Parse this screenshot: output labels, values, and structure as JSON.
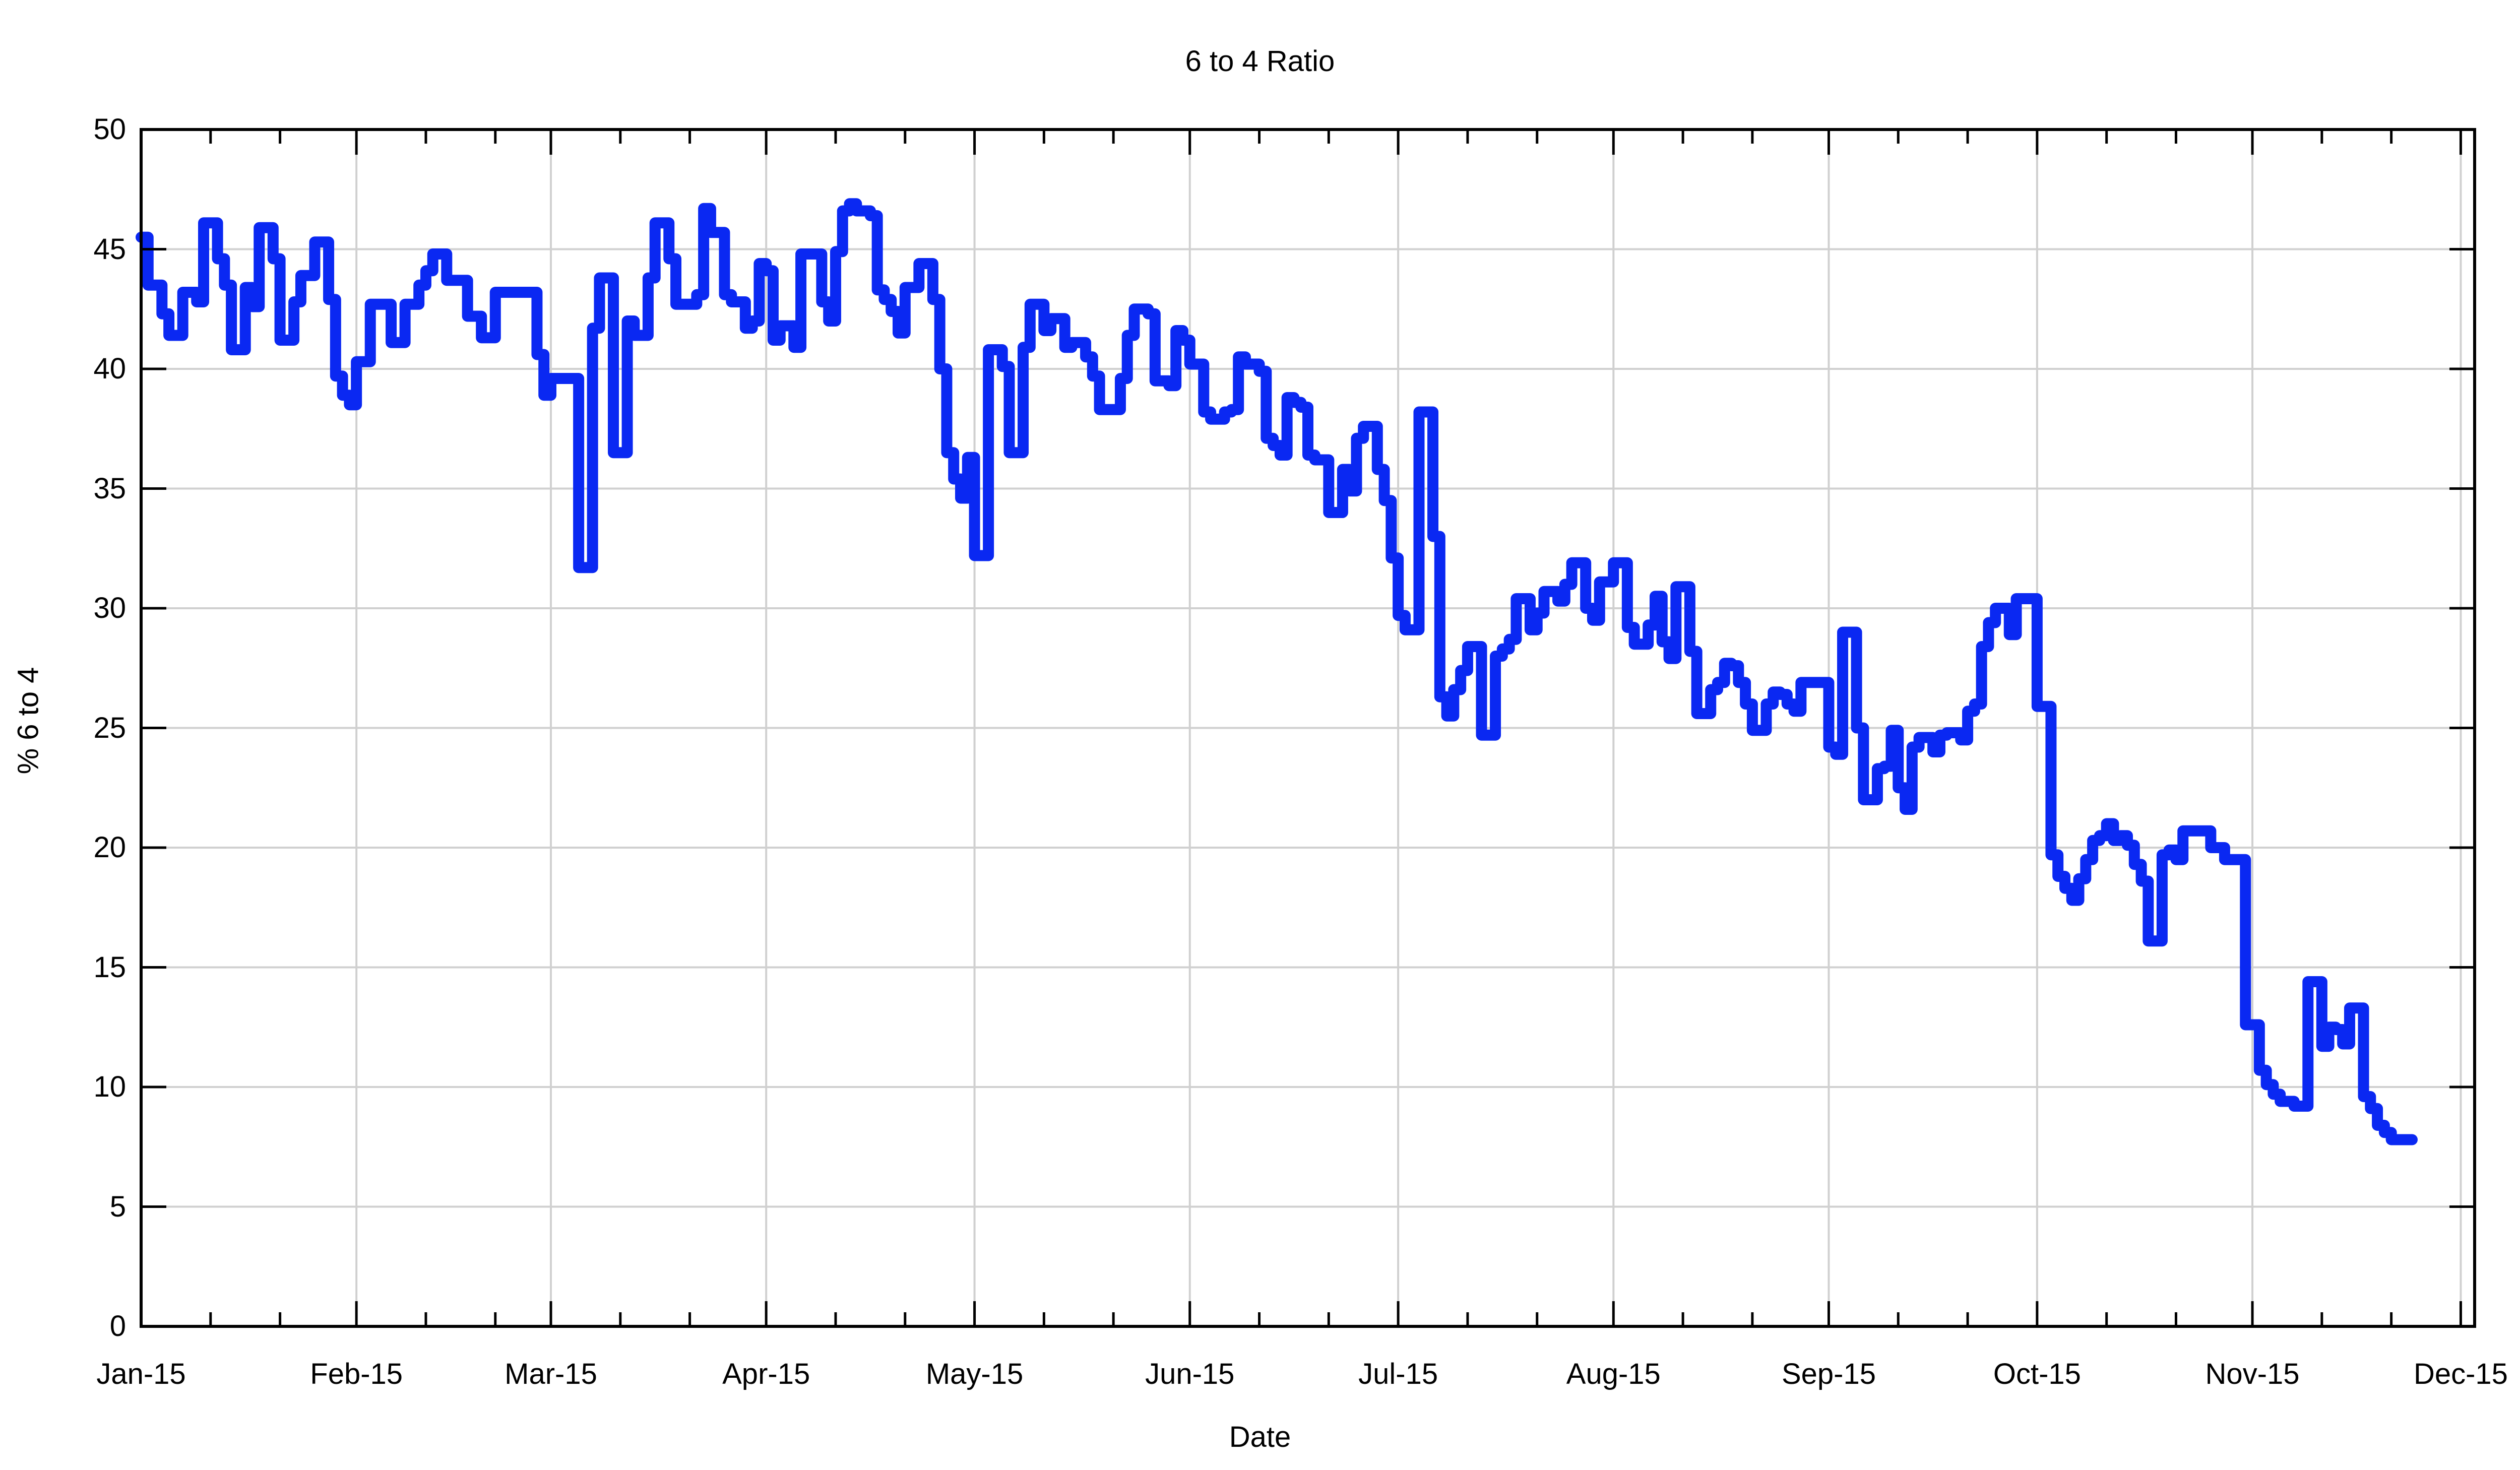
{
  "title": "6 to 4 Ratio",
  "colors": {
    "line": "#0a28f2",
    "grid": "#d0d0d0",
    "axis": "#000000",
    "background": "#ffffff"
  },
  "chart_data": {
    "type": "line",
    "step": "post",
    "title": "6 to 4 Ratio",
    "xlabel": "Date",
    "ylabel": "% 6 to 4",
    "ylim": [
      0,
      50
    ],
    "y_ticks": [
      0,
      5,
      10,
      15,
      20,
      25,
      30,
      35,
      40,
      45,
      50
    ],
    "y_tick_labels": [
      "0",
      "5",
      "10",
      "15",
      "20",
      "25",
      "30",
      "35",
      "40",
      "45",
      "50"
    ],
    "grid": true,
    "legend": "none",
    "xlim_days": [
      0,
      336
    ],
    "x_tick_days": [
      0,
      31,
      59,
      90,
      120,
      151,
      181,
      212,
      243,
      273,
      304,
      334
    ],
    "x_tick_labels": [
      "Jan-15",
      "Feb-15",
      "Mar-15",
      "Apr-15",
      "May-15",
      "Jun-15",
      "Jul-15",
      "Aug-15",
      "Sep-15",
      "Oct-15",
      "Nov-15",
      "Dec-15"
    ],
    "x_minor_offsets": [
      10,
      20
    ],
    "start_date": "2015-01-01",
    "values_daily": [
      45.5,
      43.5,
      43.5,
      42.3,
      41.4,
      41.4,
      43.2,
      43.2,
      42.8,
      46.1,
      46.1,
      44.6,
      43.5,
      40.8,
      40.8,
      43.4,
      42.6,
      45.9,
      45.9,
      44.6,
      41.2,
      41.2,
      42.8,
      43.9,
      43.9,
      45.3,
      45.3,
      42.9,
      39.7,
      38.9,
      38.5,
      40.3,
      40.3,
      42.7,
      42.7,
      42.7,
      41.1,
      41.1,
      42.7,
      42.7,
      43.5,
      44.1,
      44.8,
      44.8,
      43.7,
      43.7,
      43.7,
      42.2,
      42.2,
      41.3,
      41.3,
      43.2,
      43.2,
      43.2,
      43.2,
      43.2,
      43.2,
      40.6,
      38.9,
      39.6,
      39.6,
      39.6,
      39.6,
      31.7,
      31.7,
      41.7,
      43.8,
      43.8,
      36.5,
      36.5,
      42.0,
      41.4,
      41.4,
      43.8,
      46.1,
      46.1,
      44.6,
      42.7,
      42.7,
      42.7,
      43.1,
      46.7,
      45.7,
      45.7,
      43.1,
      42.8,
      42.8,
      41.7,
      42.0,
      44.4,
      44.1,
      41.2,
      41.8,
      41.8,
      40.9,
      44.8,
      44.8,
      44.8,
      42.8,
      42.0,
      44.9,
      46.6,
      46.9,
      46.6,
      46.6,
      46.4,
      43.3,
      42.9,
      42.4,
      41.5,
      43.4,
      43.4,
      44.4,
      44.4,
      42.9,
      40.0,
      36.5,
      35.4,
      34.6,
      36.3,
      32.2,
      32.2,
      40.8,
      40.8,
      40.1,
      36.5,
      36.5,
      40.9,
      42.7,
      42.7,
      41.6,
      42.1,
      42.1,
      40.9,
      41.1,
      41.1,
      40.5,
      39.7,
      38.3,
      38.3,
      38.3,
      39.6,
      41.4,
      42.5,
      42.5,
      42.3,
      39.5,
      39.5,
      39.3,
      41.6,
      41.2,
      40.2,
      40.2,
      38.2,
      37.9,
      37.9,
      38.2,
      38.3,
      40.5,
      40.2,
      40.2,
      39.9,
      37.1,
      36.8,
      36.4,
      38.8,
      38.6,
      38.4,
      36.4,
      36.2,
      36.2,
      34.0,
      34.0,
      35.8,
      34.9,
      37.1,
      37.6,
      37.6,
      35.8,
      34.5,
      32.1,
      29.7,
      29.1,
      29.1,
      38.2,
      38.2,
      33.0,
      26.3,
      25.5,
      26.6,
      27.4,
      28.4,
      28.4,
      24.7,
      24.7,
      28.0,
      28.3,
      28.7,
      30.4,
      30.4,
      29.1,
      29.8,
      30.7,
      30.7,
      30.3,
      31.0,
      31.9,
      31.9,
      30.0,
      29.5,
      31.1,
      31.1,
      31.9,
      31.9,
      29.2,
      28.5,
      28.5,
      29.3,
      30.5,
      28.6,
      27.9,
      30.9,
      30.9,
      28.2,
      25.6,
      25.6,
      26.6,
      26.9,
      27.7,
      27.6,
      26.9,
      26.0,
      24.9,
      24.9,
      26.0,
      26.5,
      26.4,
      26.0,
      25.7,
      26.9,
      26.9,
      26.9,
      26.9,
      24.2,
      23.9,
      29.0,
      29.0,
      25.0,
      22.0,
      22.0,
      23.3,
      23.4,
      24.9,
      22.5,
      21.6,
      24.2,
      24.6,
      24.6,
      24.0,
      24.7,
      24.8,
      24.8,
      24.5,
      25.7,
      26.0,
      28.4,
      29.4,
      30.0,
      30.0,
      28.9,
      30.4,
      30.4,
      30.4,
      25.9,
      25.9,
      19.7,
      18.8,
      18.3,
      17.8,
      18.7,
      19.5,
      20.3,
      20.5,
      21.0,
      20.3,
      20.5,
      20.1,
      19.3,
      18.6,
      16.1,
      16.1,
      19.7,
      19.9,
      19.5,
      20.7,
      20.7,
      20.7,
      20.7,
      20.0,
      20.0,
      19.5,
      19.5,
      19.5,
      12.6,
      12.6,
      10.7,
      10.1,
      9.7,
      9.4,
      9.4,
      9.2,
      9.2,
      14.4,
      14.4,
      11.7,
      12.5,
      12.4,
      11.8,
      13.3,
      13.3,
      9.6,
      9.1,
      8.4,
      8.1,
      7.8,
      7.8,
      7.8
    ]
  }
}
